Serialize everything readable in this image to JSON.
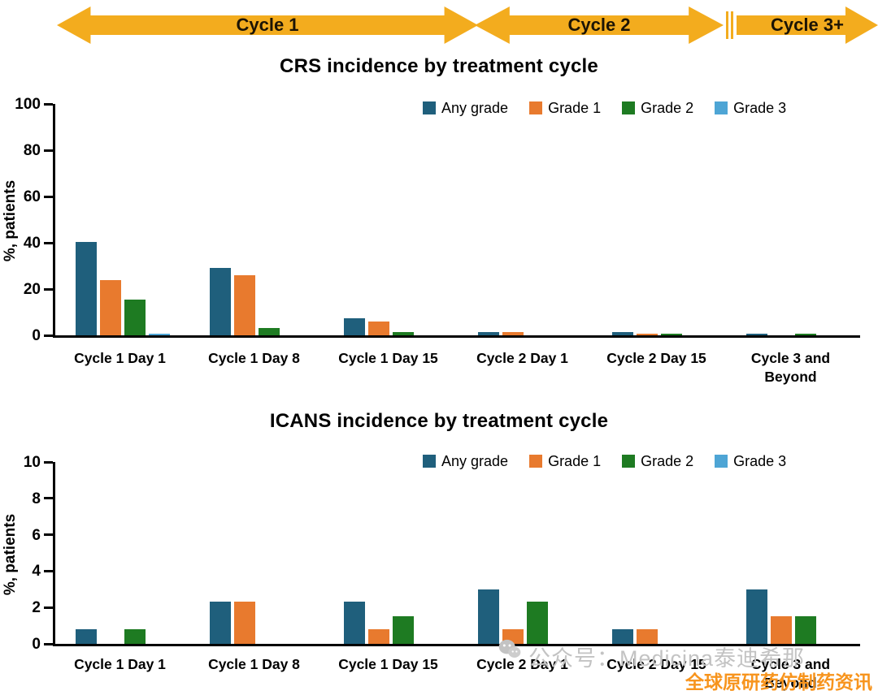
{
  "cycle_arrows": [
    {
      "label": "Cycle 1"
    },
    {
      "label": "Cycle 2"
    },
    {
      "label": "Cycle 3+"
    }
  ],
  "legend": [
    "Any grade",
    "Grade 1",
    "Grade 2",
    "Grade 3"
  ],
  "colors": {
    "series": [
      "#1F5F7C",
      "#E87A2E",
      "#1E7B22",
      "#4EA5D5"
    ],
    "arrow": "#F3AC1E",
    "watermark_orange": "#F7941D",
    "watermark_gray": "#C3C3C3"
  },
  "chart_data": [
    {
      "type": "bar",
      "title": "CRS incidence by treatment cycle",
      "ylabel": "%, patients",
      "xlabel": "",
      "ylim": [
        0,
        100
      ],
      "yticks": [
        0,
        20,
        40,
        60,
        80,
        100
      ],
      "grid": false,
      "legend_position": "top-right",
      "categories": [
        "Cycle 1 Day 1",
        "Cycle 1 Day 8",
        "Cycle 1 Day 15",
        "Cycle 2 Day 1",
        "Cycle 2 Day 15",
        "Cycle 3 and Beyond"
      ],
      "series": [
        {
          "name": "Any grade",
          "values": [
            40.5,
            29.0,
            7.5,
            1.5,
            1.5,
            0.8
          ]
        },
        {
          "name": "Grade 1",
          "values": [
            24.0,
            26.0,
            6.0,
            1.5,
            0.8,
            0
          ]
        },
        {
          "name": "Grade 2",
          "values": [
            15.5,
            3.0,
            1.5,
            0,
            0.8,
            0.8
          ]
        },
        {
          "name": "Grade 3",
          "values": [
            0.8,
            0,
            0,
            0,
            0,
            0
          ]
        }
      ]
    },
    {
      "type": "bar",
      "title": "ICANS incidence by treatment cycle",
      "ylabel": "%, patients",
      "xlabel": "",
      "ylim": [
        0,
        10
      ],
      "yticks": [
        0,
        2,
        4,
        6,
        8,
        10
      ],
      "grid": false,
      "legend_position": "top-right",
      "categories": [
        "Cycle 1 Day 1",
        "Cycle 1 Day 8",
        "Cycle 1 Day 15",
        "Cycle 2 Day 1",
        "Cycle 2 Day 15",
        "Cycle 3 and Beyond"
      ],
      "series": [
        {
          "name": "Any grade",
          "values": [
            0.8,
            2.3,
            2.3,
            3.0,
            0.8,
            3.0
          ]
        },
        {
          "name": "Grade 1",
          "values": [
            0,
            2.3,
            0.8,
            0.8,
            0.8,
            1.5
          ]
        },
        {
          "name": "Grade 2",
          "values": [
            0.8,
            0,
            1.5,
            2.3,
            0,
            1.5
          ]
        },
        {
          "name": "Grade 3",
          "values": [
            0,
            0,
            0,
            0,
            0,
            0
          ]
        }
      ]
    }
  ],
  "watermark": {
    "wechat_label": "公众号：Medicina泰迪希那",
    "orange_label": "全球原研药仿制药资讯"
  }
}
